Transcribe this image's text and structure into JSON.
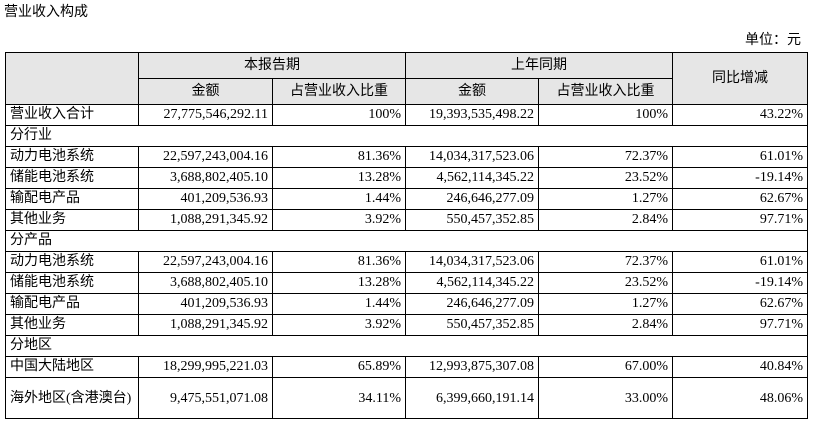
{
  "header": {
    "title": "营业收入构成",
    "unit": "单位：元"
  },
  "table": {
    "head": {
      "current": "本报告期",
      "previous": "上年同期",
      "change": "同比增减",
      "amount_current": "金额",
      "share_current": "占营业收入比重",
      "amount_previous": "金额",
      "share_previous": "占营业收入比重"
    },
    "rows": [
      [
        "营业收入合计",
        "27,775,546,292.11",
        "100%",
        "19,393,535,498.22",
        "100%",
        "43.22%"
      ],
      [
        "分行业"
      ],
      [
        "动力电池系统",
        "22,597,243,004.16",
        "81.36%",
        "14,034,317,523.06",
        "72.37%",
        "61.01%"
      ],
      [
        "储能电池系统",
        "3,688,802,405.10",
        "13.28%",
        "4,562,114,345.22",
        "23.52%",
        "-19.14%"
      ],
      [
        "输配电产品",
        "401,209,536.93",
        "1.44%",
        "246,646,277.09",
        "1.27%",
        "62.67%"
      ],
      [
        "其他业务",
        "1,088,291,345.92",
        "3.92%",
        "550,457,352.85",
        "2.84%",
        "97.71%"
      ],
      [
        "分产品"
      ],
      [
        "动力电池系统",
        "22,597,243,004.16",
        "81.36%",
        "14,034,317,523.06",
        "72.37%",
        "61.01%"
      ],
      [
        "储能电池系统",
        "3,688,802,405.10",
        "13.28%",
        "4,562,114,345.22",
        "23.52%",
        "-19.14%"
      ],
      [
        "输配电产品",
        "401,209,536.93",
        "1.44%",
        "246,646,277.09",
        "1.27%",
        "62.67%"
      ],
      [
        "其他业务",
        "1,088,291,345.92",
        "3.92%",
        "550,457,352.85",
        "2.84%",
        "97.71%"
      ],
      [
        "分地区"
      ],
      [
        "中国大陆地区",
        "18,299,995,221.03",
        "65.89%",
        "12,993,875,307.08",
        "67.00%",
        "40.84%"
      ],
      [
        "海外地区(含港澳台)",
        "9,475,551,071.08",
        "34.11%",
        "6,399,660,191.14",
        "33.00%",
        "48.06%"
      ]
    ]
  }
}
